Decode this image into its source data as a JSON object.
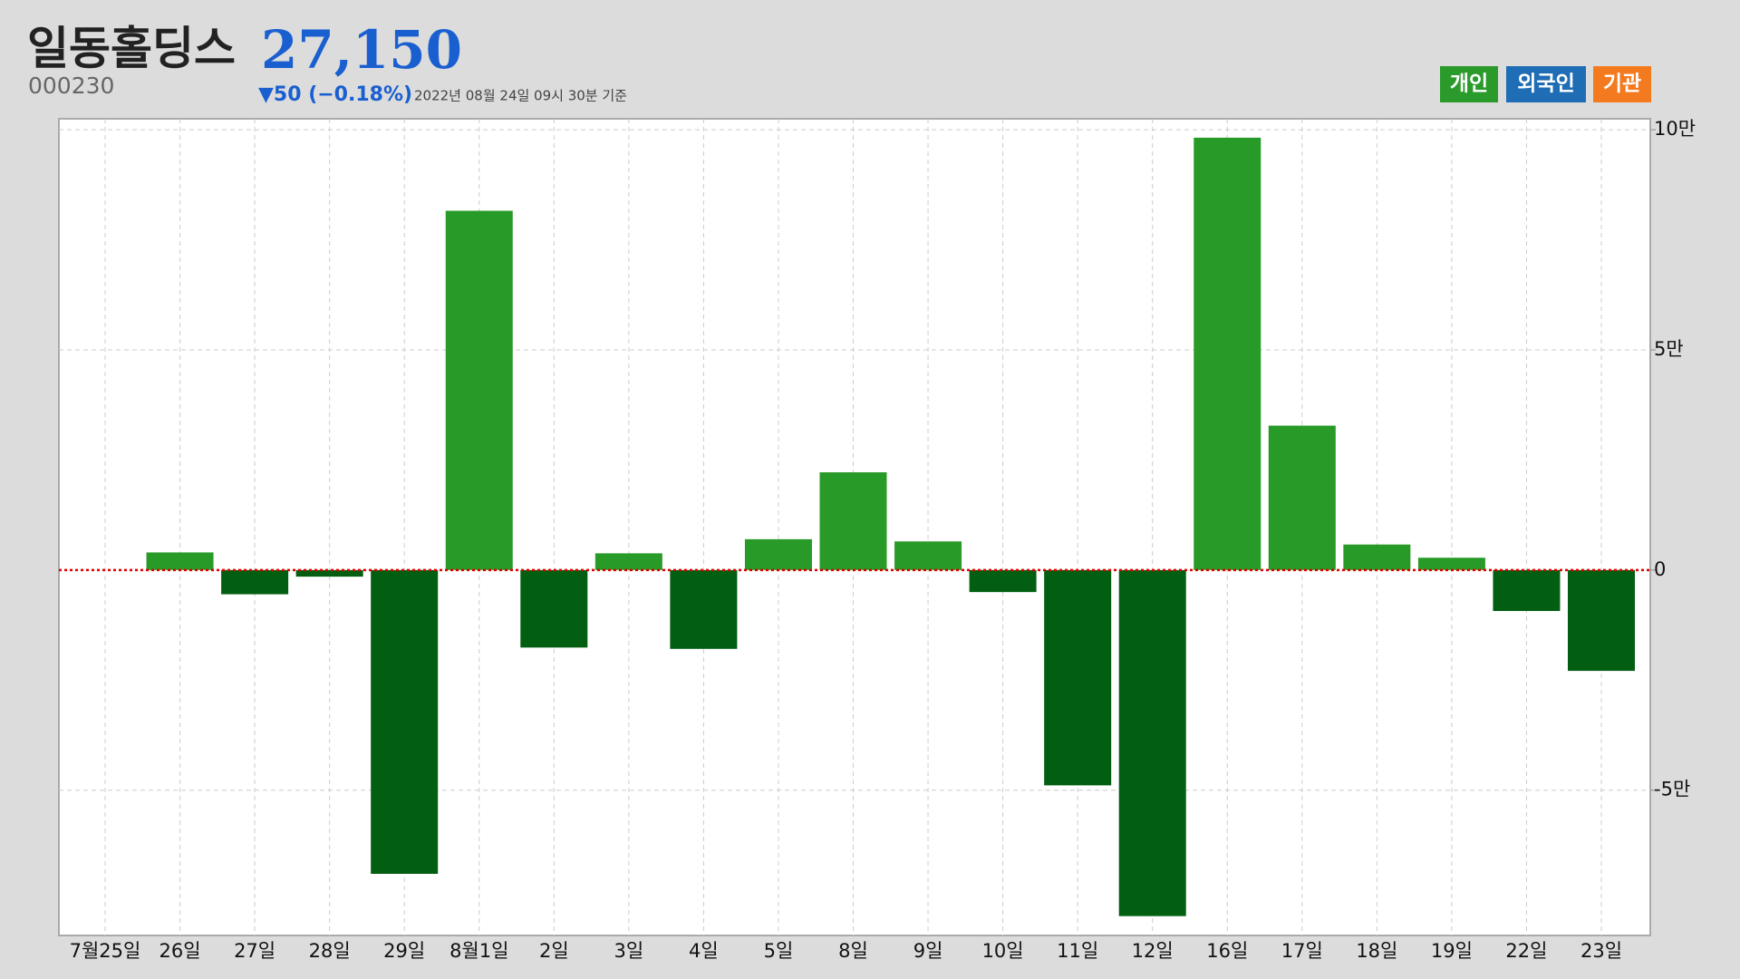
{
  "chart_data": {
    "type": "bar",
    "title": "일동홀딩스",
    "price": "27,150",
    "code": "000230",
    "change": "▼50 (−0.18%)",
    "timestamp": "2022년 08월 24일 09시 30분 기준",
    "toggles": [
      {
        "label": "개인",
        "color": "#2a9a2a"
      },
      {
        "label": "외국인",
        "color": "#1f6db5"
      },
      {
        "label": "기관",
        "color": "#f47a1f"
      }
    ],
    "categories": [
      "7월25일",
      "26일",
      "27일",
      "28일",
      "29일",
      "8월1일",
      "2일",
      "3일",
      "4일",
      "5일",
      "8일",
      "9일",
      "10일",
      "11일",
      "12일",
      "16일",
      "17일",
      "18일",
      "19일",
      "22일",
      "23일"
    ],
    "series": [
      {
        "name": "개인",
        "color": "#289a28",
        "negative_color": "#025e11",
        "values": [
          null,
          4000,
          -5500,
          -1500,
          -69000,
          81600,
          -17600,
          3800,
          -17900,
          7000,
          22200,
          6500,
          -5000,
          -48900,
          -78600,
          98200,
          32800,
          5800,
          2800,
          -9300,
          -22900
        ]
      }
    ],
    "ylim": [
      -83000,
      102500
    ],
    "yticks": [
      {
        "value": 100000,
        "label": "10만"
      },
      {
        "value": 50000,
        "label": "5만"
      },
      0,
      {
        "value": -50000,
        "label": "-5만"
      }
    ],
    "grid": true,
    "zero_line_color": "#e00000"
  }
}
